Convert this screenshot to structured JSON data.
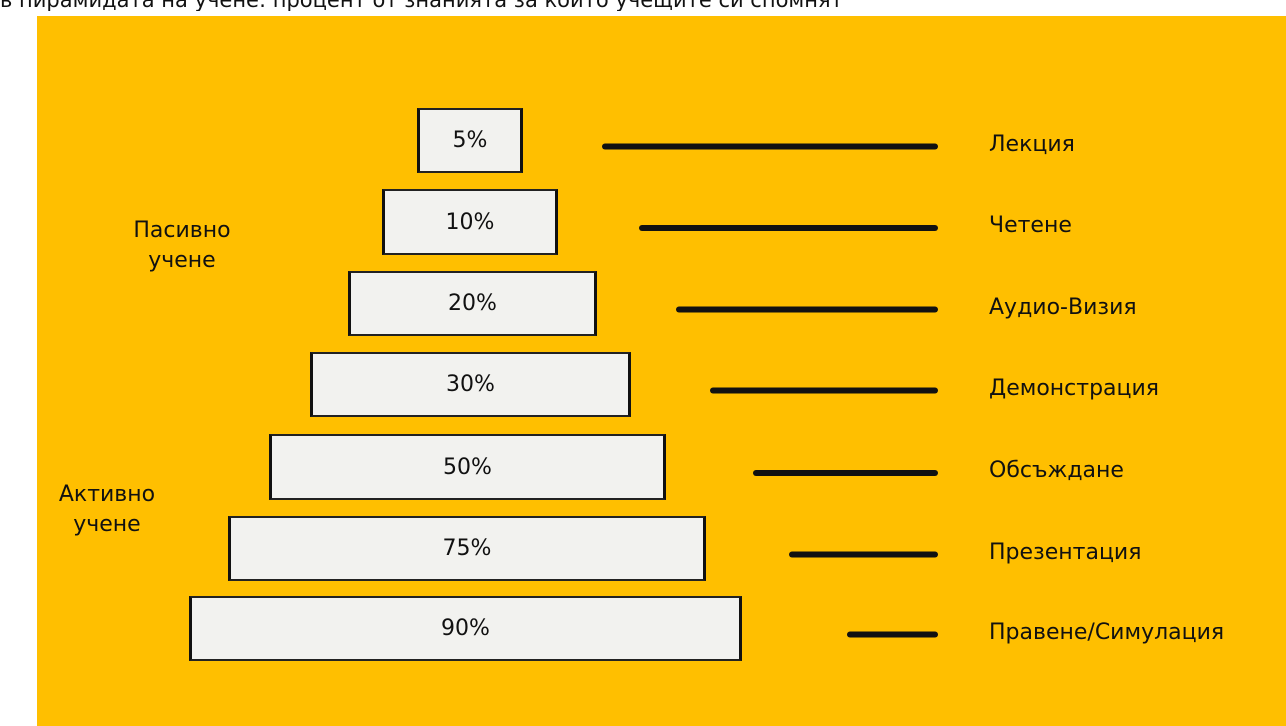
{
  "caption": "в пирамидата на учене: процент от знанията за които учещите си спомнят",
  "colors": {
    "background": "#FFBF00",
    "layer_fill": "#F2F2EF",
    "ink": "#111111"
  },
  "groups": {
    "passive": [
      "Пасивно",
      "учене"
    ],
    "active": [
      "Активно",
      "учене"
    ]
  },
  "layers": [
    {
      "percent": "5%",
      "method": "Лекция"
    },
    {
      "percent": "10%",
      "method": "Четене"
    },
    {
      "percent": "20%",
      "method": "Аудио-Визия"
    },
    {
      "percent": "30%",
      "method": "Демонстрация"
    },
    {
      "percent": "50%",
      "method": "Обсъждане"
    },
    {
      "percent": "75%",
      "method": "Презентация"
    },
    {
      "percent": "90%",
      "method": "Правене/Симулация"
    }
  ]
}
